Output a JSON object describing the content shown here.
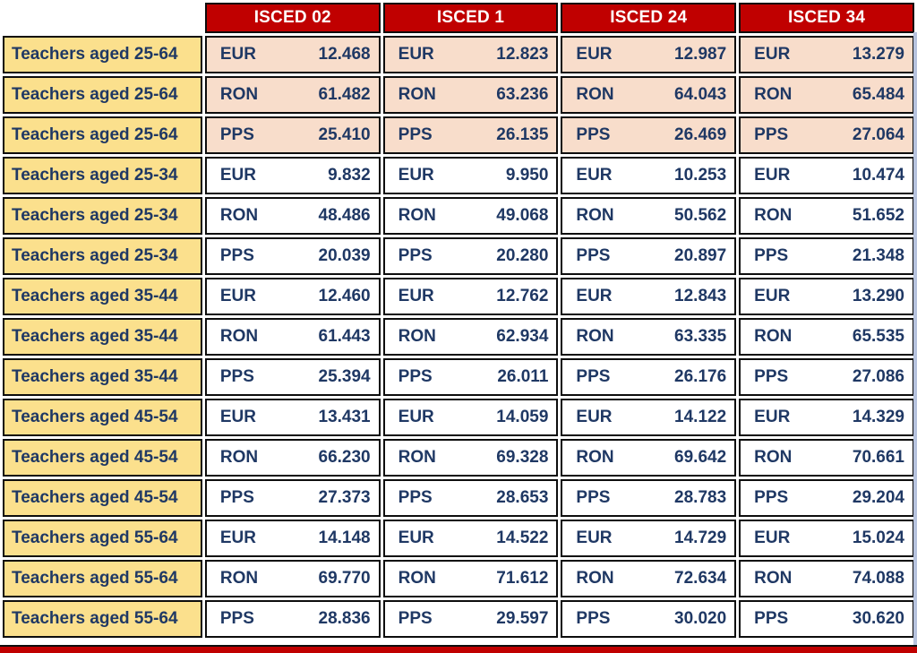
{
  "table": {
    "corner_label": "",
    "columns": [
      "ISCED 02",
      "ISCED 1",
      "ISCED 24",
      "ISCED 34"
    ],
    "rows": [
      {
        "label": "Teachers aged 25-64",
        "unit": "EUR",
        "values": [
          "12.468",
          "12.823",
          "12.987",
          "13.279"
        ],
        "shaded": true
      },
      {
        "label": "Teachers aged 25-64",
        "unit": "RON",
        "values": [
          "61.482",
          "63.236",
          "64.043",
          "65.484"
        ],
        "shaded": true
      },
      {
        "label": "Teachers aged 25-64",
        "unit": "PPS",
        "values": [
          "25.410",
          "26.135",
          "26.469",
          "27.064"
        ],
        "shaded": true
      },
      {
        "label": "Teachers aged 25-34",
        "unit": "EUR",
        "values": [
          "9.832",
          "9.950",
          "10.253",
          "10.474"
        ],
        "shaded": false
      },
      {
        "label": "Teachers aged 25-34",
        "unit": "RON",
        "values": [
          "48.486",
          "49.068",
          "50.562",
          "51.652"
        ],
        "shaded": false
      },
      {
        "label": "Teachers aged 25-34",
        "unit": "PPS",
        "values": [
          "20.039",
          "20.280",
          "20.897",
          "21.348"
        ],
        "shaded": false
      },
      {
        "label": "Teachers aged 35-44",
        "unit": "EUR",
        "values": [
          "12.460",
          "12.762",
          "12.843",
          "13.290"
        ],
        "shaded": false
      },
      {
        "label": "Teachers aged 35-44",
        "unit": "RON",
        "values": [
          "61.443",
          "62.934",
          "63.335",
          "65.535"
        ],
        "shaded": false
      },
      {
        "label": "Teachers aged 35-44",
        "unit": "PPS",
        "values": [
          "25.394",
          "26.011",
          "26.176",
          "27.086"
        ],
        "shaded": false
      },
      {
        "label": "Teachers aged 45-54",
        "unit": "EUR",
        "values": [
          "13.431",
          "14.059",
          "14.122",
          "14.329"
        ],
        "shaded": false
      },
      {
        "label": "Teachers aged 45-54",
        "unit": "RON",
        "values": [
          "66.230",
          "69.328",
          "69.642",
          "70.661"
        ],
        "shaded": false
      },
      {
        "label": "Teachers aged 45-54",
        "unit": "PPS",
        "values": [
          "27.373",
          "28.653",
          "28.783",
          "29.204"
        ],
        "shaded": false
      },
      {
        "label": "Teachers aged 55-64",
        "unit": "EUR",
        "values": [
          "14.148",
          "14.522",
          "14.729",
          "15.024"
        ],
        "shaded": false
      },
      {
        "label": "Teachers aged 55-64",
        "unit": "RON",
        "values": [
          "69.770",
          "71.612",
          "72.634",
          "74.088"
        ],
        "shaded": false
      },
      {
        "label": "Teachers aged 55-64",
        "unit": "PPS",
        "values": [
          "28.836",
          "29.597",
          "30.020",
          "30.620"
        ],
        "shaded": false
      }
    ]
  },
  "colors": {
    "header_bg": "#C00000",
    "header_text": "#FFFFFF",
    "label_bg": "#FBE08D",
    "shaded_row_bg": "#F8DDCB",
    "row_bg": "#FFFFFF",
    "text": "#1F3864",
    "border": "#0D0D0D",
    "bottom_band": "#C00000",
    "right_edge": "#B7C3DE"
  }
}
